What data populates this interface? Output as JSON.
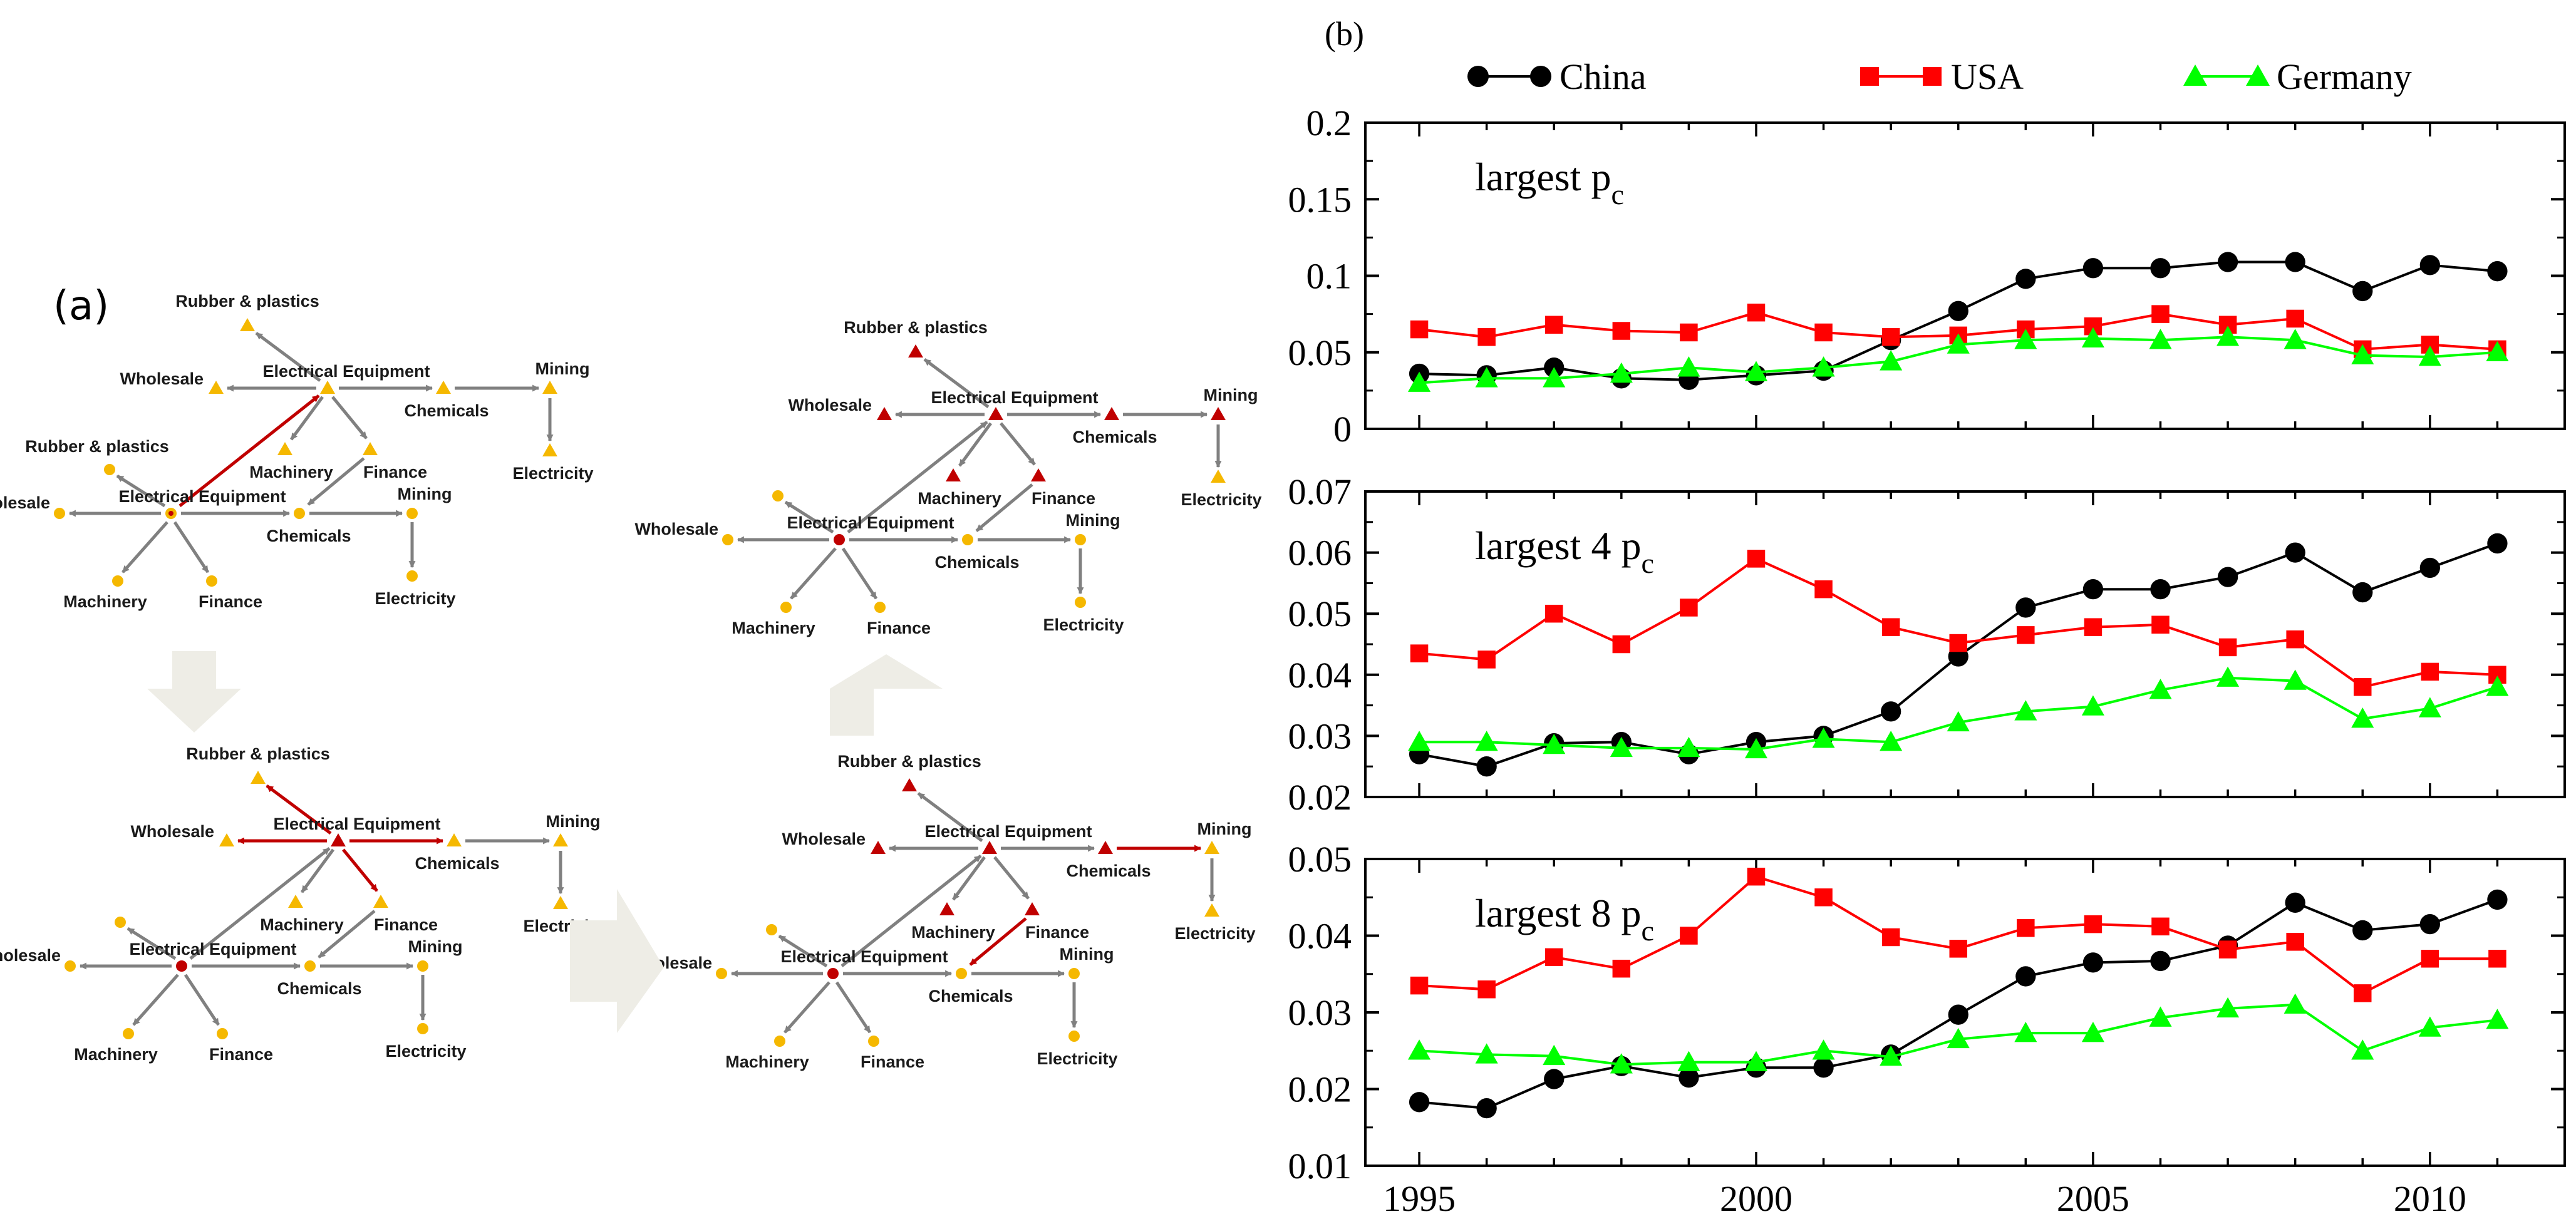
{
  "panel_a": {
    "label": "(a)",
    "node_labels": {
      "rubber": "Rubber & plastics",
      "electrical": "Electrical Equipment",
      "wholesale": "Wholesale",
      "chemicals": "Chemicals",
      "mining": "Mining",
      "electricity": "Electricity",
      "machinery": "Machinery",
      "finance": "Finance"
    }
  },
  "panel_b": {
    "label": "(b)",
    "legend": [
      {
        "name": "China",
        "color": "#000000",
        "marker": "circle"
      },
      {
        "name": "USA",
        "color": "#ff0000",
        "marker": "square"
      },
      {
        "name": "Germany",
        "color": "#00ff00",
        "marker": "triangle"
      }
    ]
  },
  "chart_data": [
    {
      "type": "line",
      "title": "largest p",
      "title_sub": "c",
      "x": [
        1995,
        1996,
        1997,
        1998,
        1999,
        2000,
        2001,
        2002,
        2003,
        2004,
        2005,
        2006,
        2007,
        2008,
        2009,
        2010,
        2011
      ],
      "xlim": [
        1994.2,
        2012
      ],
      "ylim": [
        0,
        0.2
      ],
      "yticks": [
        0,
        0.05,
        0.1,
        0.15,
        0.2
      ],
      "ytick_labels": [
        "0",
        "0.05",
        "0.1",
        "0.15",
        "0.2"
      ],
      "series": [
        {
          "name": "China",
          "values": [
            0.036,
            0.035,
            0.04,
            0.033,
            0.032,
            0.035,
            0.038,
            0.058,
            0.077,
            0.098,
            0.105,
            0.105,
            0.109,
            0.109,
            0.09,
            0.107,
            0.103
          ]
        },
        {
          "name": "USA",
          "values": [
            0.065,
            0.06,
            0.068,
            0.064,
            0.063,
            0.076,
            0.063,
            0.06,
            0.061,
            0.065,
            0.067,
            0.075,
            0.068,
            0.072,
            0.052,
            0.055,
            0.052
          ]
        },
        {
          "name": "Germany",
          "values": [
            0.03,
            0.033,
            0.033,
            0.036,
            0.04,
            0.037,
            0.04,
            0.044,
            0.055,
            0.058,
            0.059,
            0.058,
            0.06,
            0.058,
            0.048,
            0.047,
            0.05
          ]
        }
      ]
    },
    {
      "type": "line",
      "title": "largest 4 p",
      "title_sub": "c",
      "x": [
        1995,
        1996,
        1997,
        1998,
        1999,
        2000,
        2001,
        2002,
        2003,
        2004,
        2005,
        2006,
        2007,
        2008,
        2009,
        2010,
        2011
      ],
      "xlim": [
        1994.2,
        2012
      ],
      "ylim": [
        0.02,
        0.07
      ],
      "yticks": [
        0.02,
        0.03,
        0.04,
        0.05,
        0.06,
        0.07
      ],
      "ytick_labels": [
        "0.02",
        "0.03",
        "0.04",
        "0.05",
        "0.06",
        "0.07"
      ],
      "series": [
        {
          "name": "China",
          "values": [
            0.027,
            0.025,
            0.0288,
            0.029,
            0.027,
            0.029,
            0.03,
            0.034,
            0.043,
            0.051,
            0.054,
            0.054,
            0.056,
            0.06,
            0.0535,
            0.0575,
            0.0615
          ]
        },
        {
          "name": "USA",
          "values": [
            0.0435,
            0.0425,
            0.05,
            0.045,
            0.051,
            0.059,
            0.054,
            0.0478,
            0.0452,
            0.0465,
            0.0478,
            0.0482,
            0.0445,
            0.0458,
            0.038,
            0.0405,
            0.04
          ]
        },
        {
          "name": "Germany",
          "values": [
            0.029,
            0.029,
            0.0285,
            0.028,
            0.028,
            0.0278,
            0.0295,
            0.029,
            0.0322,
            0.034,
            0.0348,
            0.0375,
            0.0395,
            0.039,
            0.0328,
            0.0345,
            0.038
          ]
        }
      ]
    },
    {
      "type": "line",
      "title": "largest 8 p",
      "title_sub": "c",
      "x": [
        1995,
        1996,
        1997,
        1998,
        1999,
        2000,
        2001,
        2002,
        2003,
        2004,
        2005,
        2006,
        2007,
        2008,
        2009,
        2010,
        2011
      ],
      "xlim": [
        1994.2,
        2012
      ],
      "ylim": [
        0.01,
        0.05
      ],
      "yticks": [
        0.01,
        0.02,
        0.03,
        0.04,
        0.05
      ],
      "ytick_labels": [
        "0.01",
        "0.02",
        "0.03",
        "0.04",
        "0.05"
      ],
      "xticks": [
        1995,
        2000,
        2005,
        2010
      ],
      "xtick_labels": [
        "1995",
        "2000",
        "2005",
        "2010"
      ],
      "series": [
        {
          "name": "China",
          "values": [
            0.0183,
            0.0175,
            0.0213,
            0.023,
            0.0215,
            0.0228,
            0.0228,
            0.0245,
            0.0297,
            0.0347,
            0.0365,
            0.0367,
            0.0387,
            0.0443,
            0.0407,
            0.0415,
            0.0447
          ]
        },
        {
          "name": "USA",
          "values": [
            0.0335,
            0.033,
            0.0372,
            0.0357,
            0.04,
            0.0477,
            0.045,
            0.0398,
            0.0383,
            0.041,
            0.0415,
            0.0412,
            0.0382,
            0.0392,
            0.0325,
            0.037,
            0.037
          ]
        },
        {
          "name": "Germany",
          "values": [
            0.025,
            0.0245,
            0.0243,
            0.0232,
            0.0235,
            0.0235,
            0.025,
            0.0242,
            0.0265,
            0.0273,
            0.0273,
            0.0293,
            0.0305,
            0.031,
            0.025,
            0.028,
            0.029
          ]
        }
      ]
    }
  ]
}
